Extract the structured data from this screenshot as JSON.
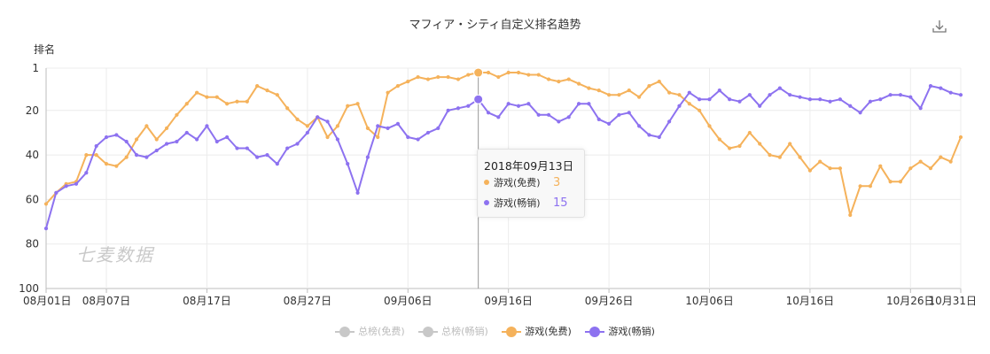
{
  "header": {
    "title": "マフィア・シティ自定义排名趋势",
    "download_icon": "download-icon"
  },
  "y_unit_label": "排名",
  "watermark": "七麦数据",
  "tooltip": {
    "date": "2018年09月13日",
    "rows": [
      {
        "name": "游戏(免费)",
        "value": "3",
        "color": "#f5b25b"
      },
      {
        "name": "游戏(畅销)",
        "value": "15",
        "color": "#8d72f0"
      }
    ]
  },
  "legend": [
    {
      "label": "总榜(免费)",
      "color": "#c8c8c8",
      "active": false
    },
    {
      "label": "总榜(畅销)",
      "color": "#c8c8c8",
      "active": false
    },
    {
      "label": "游戏(免费)",
      "color": "#f5b25b",
      "active": true
    },
    {
      "label": "游戏(畅销)",
      "color": "#8d72f0",
      "active": true
    }
  ],
  "chart_data": {
    "type": "line",
    "title": "マフィア・シティ自定义排名趋势",
    "ylabel": "排名",
    "ylim": [
      1,
      100
    ],
    "y_inverted": true,
    "y_ticks": [
      1,
      20,
      40,
      60,
      80,
      100
    ],
    "x_tick_labels": [
      "08月01日",
      "08月07日",
      "08月17日",
      "08月27日",
      "09月06日",
      "09月16日",
      "09月26日",
      "10月06日",
      "10月16日",
      "10月26日",
      "10月31日"
    ],
    "x_tick_days": [
      0,
      6,
      16,
      26,
      36,
      46,
      56,
      66,
      76,
      86,
      91
    ],
    "x_range_days": [
      0,
      91
    ],
    "date_start": "2018-08-01",
    "hover_day": 43,
    "grid": true,
    "series": [
      {
        "name": "游戏(免费)",
        "color": "#f5b25b",
        "values": [
          62,
          57,
          53,
          52,
          40,
          40,
          44,
          45,
          41,
          33,
          27,
          33,
          28,
          22,
          17,
          12,
          14,
          14,
          17,
          16,
          16,
          9,
          11,
          13,
          19,
          24,
          27,
          23,
          32,
          27,
          18,
          17,
          28,
          32,
          12,
          9,
          7,
          5,
          6,
          5,
          5,
          6,
          4,
          3,
          3,
          5,
          3,
          3,
          4,
          4,
          6,
          7,
          6,
          8,
          10,
          11,
          13,
          13,
          11,
          14,
          9,
          7,
          12,
          13,
          17,
          20,
          27,
          33,
          37,
          36,
          30,
          35,
          40,
          41,
          35,
          41,
          47,
          43,
          46,
          46,
          67,
          54,
          54,
          45,
          52,
          52,
          46,
          43,
          46,
          41,
          43,
          32
        ]
      },
      {
        "name": "游戏(畅销)",
        "color": "#8d72f0",
        "values": [
          73,
          57,
          54,
          53,
          48,
          36,
          32,
          31,
          34,
          40,
          41,
          38,
          35,
          34,
          30,
          33,
          27,
          34,
          32,
          37,
          37,
          41,
          40,
          44,
          37,
          35,
          30,
          23,
          25,
          33,
          44,
          57,
          41,
          27,
          28,
          26,
          32,
          33,
          30,
          28,
          20,
          19,
          18,
          15,
          21,
          23,
          17,
          18,
          17,
          22,
          22,
          25,
          23,
          17,
          17,
          24,
          26,
          22,
          21,
          27,
          31,
          32,
          25,
          18,
          12,
          15,
          15,
          11,
          15,
          16,
          13,
          18,
          13,
          10,
          13,
          14,
          15,
          15,
          16,
          15,
          18,
          21,
          16,
          15,
          13,
          13,
          14,
          19,
          9,
          10,
          12,
          13
        ]
      }
    ]
  }
}
